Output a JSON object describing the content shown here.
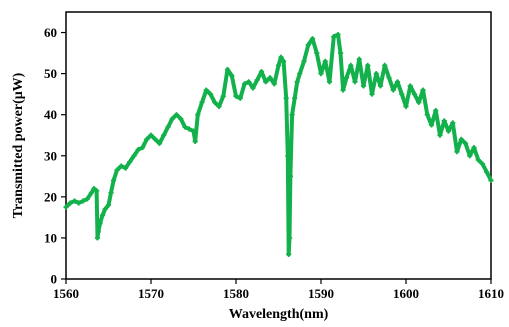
{
  "chart_data": {
    "type": "line",
    "title": "",
    "xlabel": "Wavelength(nm)",
    "ylabel": "Transmitted power(μW)",
    "xlim": [
      1560,
      1610
    ],
    "ylim": [
      0,
      65
    ],
    "x_ticks": [
      1560,
      1570,
      1580,
      1590,
      1600,
      1610
    ],
    "y_ticks": [
      0,
      10,
      20,
      30,
      40,
      50,
      60
    ],
    "grid": false,
    "legend": "none",
    "series": [
      {
        "color": "#12b14b",
        "marker": "cross",
        "x": [
          1560.0,
          1560.5,
          1561.0,
          1561.5,
          1562.0,
          1562.5,
          1563.0,
          1563.3,
          1563.6,
          1563.7,
          1563.8,
          1564.0,
          1564.3,
          1564.6,
          1565.0,
          1565.3,
          1565.6,
          1566.0,
          1566.5,
          1567.0,
          1567.5,
          1568.0,
          1568.5,
          1569.0,
          1569.5,
          1570.0,
          1570.5,
          1571.0,
          1571.5,
          1572.0,
          1572.5,
          1573.0,
          1573.5,
          1574.0,
          1574.5,
          1575.0,
          1575.2,
          1575.5,
          1576.0,
          1576.5,
          1577.0,
          1577.5,
          1578.0,
          1578.5,
          1579.0,
          1579.5,
          1580.0,
          1580.5,
          1581.0,
          1581.5,
          1582.0,
          1582.5,
          1583.0,
          1583.5,
          1584.0,
          1584.5,
          1585.0,
          1585.3,
          1585.6,
          1585.9,
          1586.1,
          1586.2,
          1586.3,
          1586.4,
          1586.6,
          1586.9,
          1587.2,
          1587.5,
          1588.0,
          1588.5,
          1589.0,
          1589.5,
          1590.0,
          1590.5,
          1591.0,
          1591.5,
          1592.0,
          1592.3,
          1592.6,
          1593.0,
          1593.5,
          1594.0,
          1594.5,
          1595.0,
          1595.5,
          1596.0,
          1596.5,
          1597.0,
          1597.5,
          1598.0,
          1598.5,
          1599.0,
          1599.5,
          1600.0,
          1600.5,
          1601.0,
          1601.5,
          1602.0,
          1602.5,
          1603.0,
          1603.5,
          1604.0,
          1604.5,
          1605.0,
          1605.5,
          1606.0,
          1606.5,
          1607.0,
          1607.5,
          1608.0,
          1608.5,
          1609.0,
          1609.5,
          1610.0
        ],
        "y": [
          17.5,
          18.5,
          19.0,
          18.5,
          19.0,
          19.5,
          21.0,
          22.0,
          21.5,
          10.0,
          11.5,
          13.5,
          15.5,
          17.0,
          18.0,
          21.0,
          24.0,
          26.5,
          27.5,
          27.0,
          28.5,
          30.0,
          31.5,
          32.0,
          34.0,
          35.0,
          34.0,
          33.0,
          35.0,
          37.0,
          39.0,
          40.0,
          39.0,
          37.0,
          36.5,
          36.0,
          33.5,
          40.0,
          43.0,
          46.0,
          45.0,
          43.0,
          42.0,
          44.5,
          51.0,
          49.5,
          44.5,
          44.0,
          47.5,
          48.0,
          46.5,
          48.5,
          50.5,
          48.0,
          49.0,
          47.5,
          52.0,
          54.0,
          53.0,
          44.0,
          30.0,
          6.0,
          10.0,
          25.0,
          40.0,
          44.0,
          48.0,
          50.0,
          53.0,
          57.0,
          58.5,
          55.0,
          50.0,
          53.0,
          48.0,
          59.0,
          59.5,
          55.0,
          46.0,
          49.0,
          52.0,
          48.0,
          53.5,
          47.0,
          52.0,
          45.0,
          50.0,
          47.0,
          52.0,
          49.0,
          46.0,
          48.0,
          45.0,
          42.0,
          47.0,
          45.0,
          43.0,
          46.0,
          40.0,
          37.5,
          41.0,
          35.0,
          38.5,
          36.0,
          38.0,
          31.0,
          34.0,
          33.0,
          30.0,
          32.0,
          29.0,
          28.0,
          26.0,
          24.0
        ]
      }
    ]
  }
}
